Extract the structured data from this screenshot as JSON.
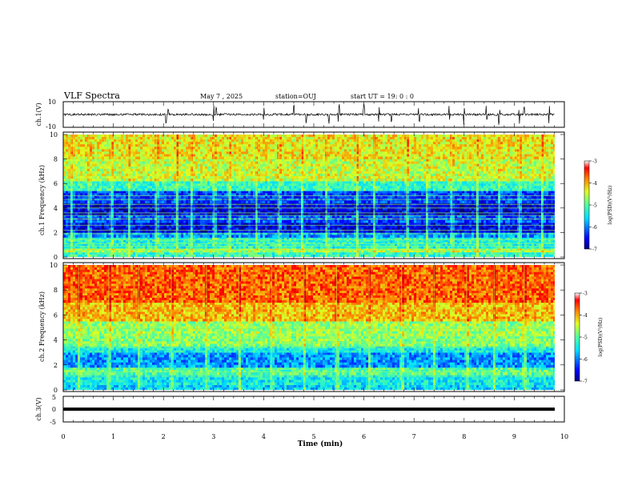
{
  "header": {
    "title": "VLF Spectra",
    "date": "May 7 , 2025",
    "station": "station=OUJ",
    "start_ut": "start UT = 19: 0 : 0"
  },
  "colors": {
    "spectrum_low": "#00007f",
    "spectrum_mid": "#1fdf9f",
    "spectrum_high": "#d0001a",
    "trace": "#000000"
  },
  "chart_data": [
    {
      "type": "line",
      "name": "ch1-waveform",
      "ylabel": "ch.1(V)",
      "ylim": [
        -10,
        10
      ],
      "yticks": [
        "10",
        "-10"
      ],
      "xlim": [
        0,
        10
      ],
      "baseline": 0,
      "spike_times_min": [
        2.05,
        2.1,
        3.0,
        3.05,
        4.0,
        4.6,
        4.85,
        5.3,
        5.5,
        6.0,
        6.3,
        6.55,
        7.1,
        7.7,
        8.0,
        8.45,
        8.7,
        9.1,
        9.2,
        9.7
      ]
    },
    {
      "type": "heatmap",
      "name": "ch1-spectrogram",
      "ylabel": "ch.1 Frequency (kHz)",
      "ylim": [
        0,
        10
      ],
      "yticks": [
        "0",
        "2",
        "4",
        "6",
        "8",
        "10"
      ],
      "xlim": [
        0,
        9.82
      ],
      "colorbar": {
        "label": "log(PSD)(V²/Hz)",
        "range": [
          -7,
          -3
        ],
        "ticks": [
          "-3",
          "-4",
          "-5",
          "-6",
          "-7"
        ]
      },
      "bands": [
        {
          "f": [
            0,
            0.4
          ],
          "log_psd": -5.2
        },
        {
          "f": [
            0.4,
            0.7
          ],
          "log_psd": -4.6
        },
        {
          "f": [
            0.7,
            1.6
          ],
          "log_psd": -5.3
        },
        {
          "f": [
            1.6,
            2.0
          ],
          "log_psd": -5.9
        },
        {
          "f": [
            2.0,
            2.8
          ],
          "log_psd": -6.6
        },
        {
          "f": [
            2.8,
            3.4
          ],
          "log_psd": -6.2
        },
        {
          "f": [
            3.4,
            4.4
          ],
          "log_psd": -6.7
        },
        {
          "f": [
            4.4,
            5.4
          ],
          "log_psd": -6.3
        },
        {
          "f": [
            5.4,
            6.2
          ],
          "log_psd": -5.2
        },
        {
          "f": [
            6.2,
            8.0
          ],
          "log_psd": -4.5
        },
        {
          "f": [
            8.0,
            10.0
          ],
          "log_psd": -4.3
        }
      ],
      "lines_khz": [
        0.55,
        0.9,
        1.1,
        1.4,
        1.9,
        2.2,
        2.6,
        3.1,
        3.4,
        3.6,
        4.0,
        4.3,
        4.7,
        5.0
      ],
      "bursts_min": [
        0.15,
        0.5,
        0.95,
        1.3,
        1.85,
        2.25,
        2.55,
        3.0,
        3.3,
        3.85,
        4.3,
        4.75,
        5.25,
        5.85,
        6.2,
        6.85,
        7.25,
        7.75,
        8.25,
        8.7,
        9.1,
        9.55
      ]
    },
    {
      "type": "heatmap",
      "name": "ch2-spectrogram",
      "ylabel": "ch.2 Frequency (kHz)",
      "ylim": [
        0,
        10
      ],
      "yticks": [
        "0",
        "2",
        "4",
        "6",
        "8",
        "10"
      ],
      "xlim": [
        0,
        9.82
      ],
      "colorbar": {
        "label": "log(PSD)(V²/Hz)",
        "range": [
          -7,
          -3
        ],
        "ticks": [
          "-3",
          "-4",
          "-5",
          "-6",
          "-7"
        ]
      },
      "bands": [
        {
          "f": [
            0,
            0.4
          ],
          "log_psd": -5.6
        },
        {
          "f": [
            0.4,
            1.2
          ],
          "log_psd": -5.4
        },
        {
          "f": [
            1.2,
            1.8
          ],
          "log_psd": -5.0
        },
        {
          "f": [
            1.8,
            3.0
          ],
          "log_psd": -5.9
        },
        {
          "f": [
            3.0,
            3.5
          ],
          "log_psd": -5.4
        },
        {
          "f": [
            3.5,
            4.3
          ],
          "log_psd": -4.8
        },
        {
          "f": [
            4.3,
            5.5
          ],
          "log_psd": -4.7
        },
        {
          "f": [
            5.5,
            7.0
          ],
          "log_psd": -4.1
        },
        {
          "f": [
            7.0,
            10.0
          ],
          "log_psd": -3.7
        }
      ],
      "lines_khz": [
        1.1,
        1.45,
        3.4,
        3.8,
        4.1,
        4.35,
        5.0
      ],
      "bursts_min": [
        0.3,
        0.9,
        1.5,
        2.15,
        2.85,
        3.5,
        4.15,
        4.8,
        5.45,
        6.1,
        6.75,
        7.4,
        8.05,
        8.6,
        9.2
      ]
    },
    {
      "type": "line",
      "name": "ch3-waveform",
      "ylabel": "ch.3(V)",
      "ylim": [
        -5,
        5
      ],
      "yticks": [
        "5",
        "0",
        "-5"
      ],
      "xlim": [
        0,
        10
      ],
      "level": 0
    }
  ],
  "x_axis": {
    "label": "Time (min)",
    "ticks": [
      "0",
      "1",
      "2",
      "3",
      "4",
      "5",
      "6",
      "7",
      "8",
      "9",
      "10"
    ],
    "xlim": [
      0,
      10
    ]
  }
}
